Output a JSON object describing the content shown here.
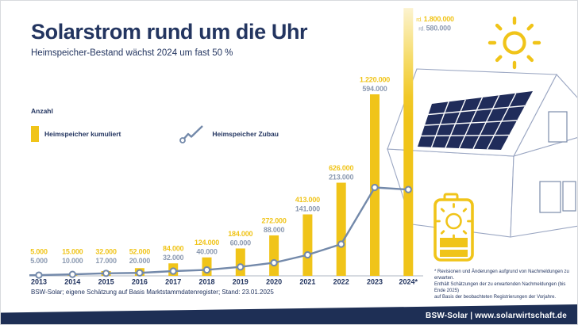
{
  "header": {
    "title": "Solarstrom rund um die Uhr",
    "subtitle": "Heimspeicher-Bestand wächst 2024 um fast 50 %"
  },
  "legend": {
    "title": "Anzahl",
    "items": [
      {
        "label": "Heimspeicher kumuliert",
        "marker": "yellow-bar-swatch"
      },
      {
        "label": "Heimspeicher Zubau",
        "marker": "line-with-marker-swatch"
      }
    ]
  },
  "chart_data": {
    "type": "bar",
    "categories": [
      "2013",
      "2014",
      "2015",
      "2016",
      "2017",
      "2018",
      "2019",
      "2020",
      "2021",
      "2022",
      "2023",
      "2024*"
    ],
    "series": [
      {
        "name": "Heimspeicher kumuliert",
        "type": "bar",
        "values": [
          5000,
          15000,
          32000,
          52000,
          84000,
          124000,
          184000,
          272000,
          413000,
          626000,
          1220000,
          1800000
        ],
        "value_labels": [
          "5.000",
          "15.000",
          "32.000",
          "52.000",
          "84.000",
          "124.000",
          "184.000",
          "272.000",
          "413.000",
          "626.000",
          "1.220.000",
          "rd. 1.800.000"
        ]
      },
      {
        "name": "Heimspeicher Zubau",
        "type": "line",
        "values": [
          5000,
          10000,
          17000,
          20000,
          32000,
          40000,
          60000,
          88000,
          141000,
          213000,
          594000,
          580000
        ],
        "value_labels": [
          "5.000",
          "10.000",
          "17.000",
          "20.000",
          "32.000",
          "40.000",
          "60.000",
          "88.000",
          "141.000",
          "213.000",
          "594.000",
          "rd. 580.000"
        ]
      }
    ],
    "title": "Solarstrom rund um die Uhr",
    "xlabel": "",
    "ylabel": "Anzahl",
    "ylim": [
      0,
      1800000
    ],
    "grid": false,
    "legend_position": "top-left",
    "notes": "2024 bar rendered with fading gradient; 2024 values are estimates (rd. = rund/approx.)"
  },
  "footnote": "* Revisionen und Änderungen aufgrund von Nachmeldungen zu erwarten.\nEnthält Schätzungen der zu erwartenden Nachmeldungen (bis Ende 2025)\nauf Basis der beobachteten Registrierungen der Vorjahre.",
  "source": "BSW-Solar; eigene Schätzung auf Basis Marktstammdatenregister; Stand: 23.01.2025",
  "footer": {
    "text": "BSW-Solar | www.solarwirtschaft.de"
  },
  "icons": {
    "sun": "sun-icon",
    "battery": "solar-battery-icon",
    "house": "house-with-solar-panels-illustration"
  },
  "colors": {
    "navy": "#233560",
    "yellow": "#f0c419",
    "gray_blue": "#8c9ab1",
    "line": "#7389aa",
    "axis": "#c9cdd6",
    "panel": "#202c5a",
    "house_stroke": "#9aa6c2",
    "footer_bg": "#1e2f55"
  }
}
